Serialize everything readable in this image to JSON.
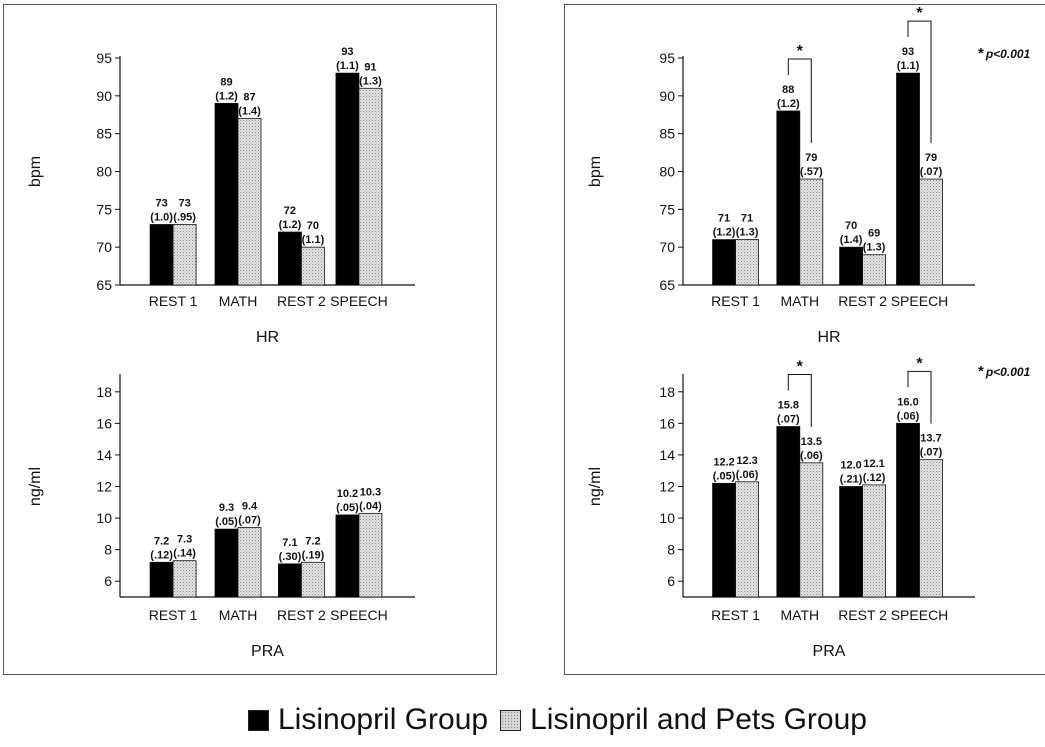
{
  "colors": {
    "group_a": "#000000",
    "group_b": "#d6d6d6",
    "axis": "#111111",
    "frame": "#555555"
  },
  "legend": {
    "items": [
      {
        "label": "Lisinopril Group",
        "color": "#000000",
        "pattern": "solid"
      },
      {
        "label": "Lisinopril and Pets Group",
        "color": "#d6d6d6",
        "pattern": "stipple"
      }
    ]
  },
  "chart_data": [
    {
      "type": "bar",
      "panel": "left",
      "title": "HR",
      "ylabel": "bpm",
      "ylim": [
        65,
        95
      ],
      "yticks": [
        65,
        70,
        75,
        80,
        85,
        90,
        95
      ],
      "categories": [
        "REST 1",
        "MATH",
        "REST 2",
        "SPEECH"
      ],
      "series": [
        {
          "name": "Lisinopril Group",
          "values": [
            73,
            89,
            72,
            93
          ],
          "labels": [
            "73",
            "89",
            "72",
            "93"
          ],
          "sub_labels": [
            "(1.0)",
            "(1.2)",
            "(1.2)",
            "(1.1)"
          ]
        },
        {
          "name": "Lisinopril and Pets Group",
          "values": [
            73,
            87,
            70,
            91
          ],
          "labels": [
            "73",
            "87",
            "70",
            "91"
          ],
          "sub_labels": [
            "(.95)",
            "(1.4)",
            "(1.1)",
            "(1.3)"
          ]
        }
      ],
      "significant_categories": [],
      "annotation": ""
    },
    {
      "type": "bar",
      "panel": "right",
      "title": "HR",
      "ylabel": "bpm",
      "ylim": [
        65,
        95
      ],
      "yticks": [
        65,
        70,
        75,
        80,
        85,
        90,
        95
      ],
      "categories": [
        "REST 1",
        "MATH",
        "REST 2",
        "SPEECH"
      ],
      "series": [
        {
          "name": "Lisinopril Group",
          "values": [
            71,
            88,
            70,
            93
          ],
          "labels": [
            "71",
            "88",
            "70",
            "93"
          ],
          "sub_labels": [
            "(1.2)",
            "(1.2)",
            "(1.4)",
            "(1.1)"
          ]
        },
        {
          "name": "Lisinopril and Pets Group",
          "values": [
            71,
            79,
            69,
            79
          ],
          "labels": [
            "71",
            "79",
            "69",
            "79"
          ],
          "sub_labels": [
            "(1.3)",
            "(.57)",
            "(1.3)",
            "(.07)"
          ]
        }
      ],
      "significant_categories": [
        1,
        3
      ],
      "annotation": "p<0.001"
    },
    {
      "type": "bar",
      "panel": "left",
      "title": "PRA",
      "ylabel": "ng/ml",
      "ylim": [
        5,
        19
      ],
      "yticks": [
        6,
        8,
        10,
        12,
        14,
        16,
        18
      ],
      "categories": [
        "REST 1",
        "MATH",
        "REST 2",
        "SPEECH"
      ],
      "series": [
        {
          "name": "Lisinopril Group",
          "values": [
            7.2,
            9.3,
            7.1,
            10.2
          ],
          "labels": [
            "7.2",
            "9.3",
            "7.1",
            "10.2"
          ],
          "sub_labels": [
            "(.12)",
            "(.05)",
            "(.30)",
            "(.05)"
          ]
        },
        {
          "name": "Lisinopril and Pets Group",
          "values": [
            7.3,
            9.4,
            7.2,
            10.3
          ],
          "labels": [
            "7.3",
            "9.4",
            "7.2",
            "10.3"
          ],
          "sub_labels": [
            "(.14)",
            "(.07)",
            "(.19)",
            "(.04)"
          ]
        }
      ],
      "significant_categories": [],
      "annotation": ""
    },
    {
      "type": "bar",
      "panel": "right",
      "title": "PRA",
      "ylabel": "ng/ml",
      "ylim": [
        5,
        19
      ],
      "yticks": [
        6,
        8,
        10,
        12,
        14,
        16,
        18
      ],
      "categories": [
        "REST 1",
        "MATH",
        "REST 2",
        "SPEECH"
      ],
      "series": [
        {
          "name": "Lisinopril Group",
          "values": [
            12.2,
            15.8,
            12.0,
            16.0
          ],
          "labels": [
            "12.2",
            "15.8",
            "12.0",
            "16.0"
          ],
          "sub_labels": [
            "(.05)",
            "(.07)",
            "(.21)",
            "(.06)"
          ]
        },
        {
          "name": "Lisinopril and Pets Group",
          "values": [
            12.3,
            13.5,
            12.1,
            13.7
          ],
          "labels": [
            "12.3",
            "13.5",
            "12.1",
            "13.7"
          ],
          "sub_labels": [
            "(.06)",
            "(.06)",
            "(.12)",
            "(.07)"
          ]
        }
      ],
      "significant_categories": [
        1,
        3
      ],
      "annotation": "p<0.001"
    }
  ]
}
